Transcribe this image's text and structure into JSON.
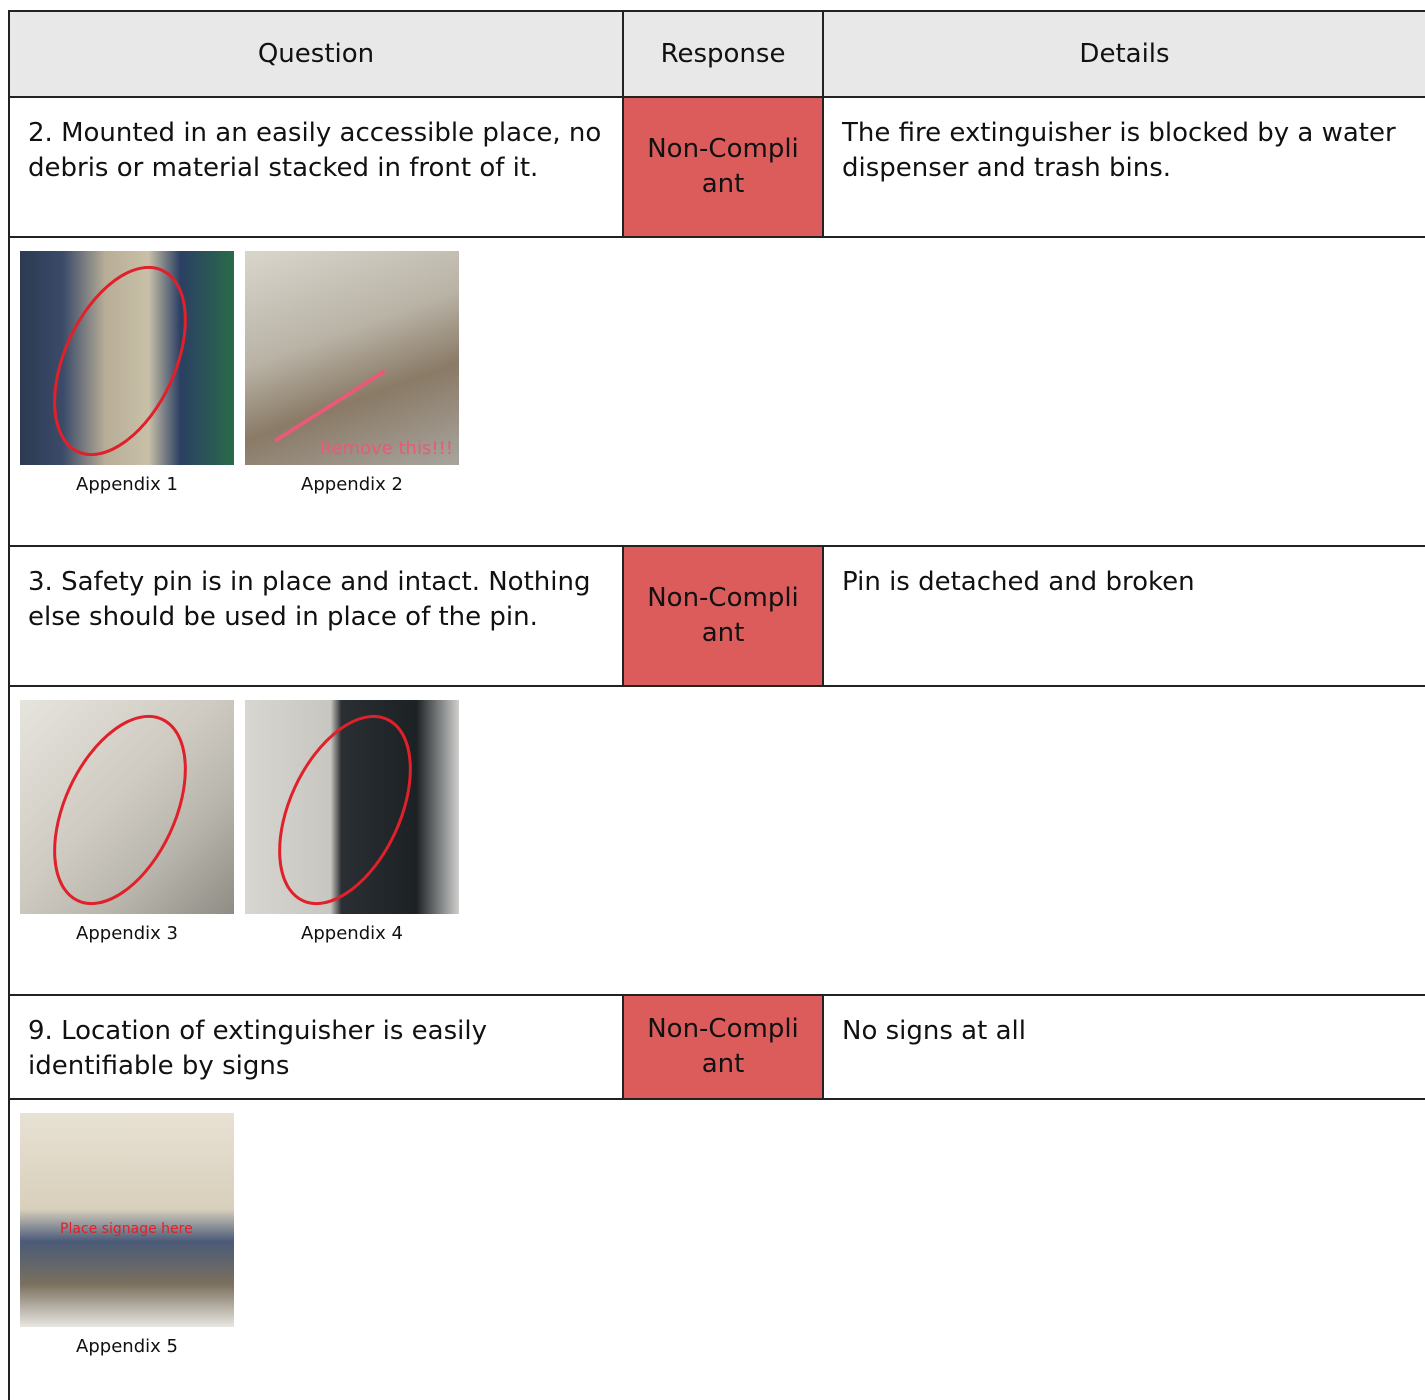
{
  "table": {
    "headers": [
      "Question",
      "Response",
      "Details"
    ],
    "items": [
      {
        "question": "2. Mounted in an easily accessible place, no debris or material stacked in front of it.",
        "response": "Non-Compliant",
        "details": "The fire extinguisher is blocked by a water dispenser and trash bins.",
        "images": [
          {
            "caption": "Appendix 1"
          },
          {
            "caption": "Appendix 2",
            "annotation": "Remove this!!!"
          }
        ]
      },
      {
        "question": "3. Safety pin is in place and intact. Nothing else should be used in place of the pin.",
        "response": "Non-Compliant",
        "details": "Pin is detached and broken",
        "images": [
          {
            "caption": "Appendix 3"
          },
          {
            "caption": "Appendix 4"
          }
        ]
      },
      {
        "question": "9. Location of extinguisher is easily identifiable by signs",
        "response": "Non-Compliant",
        "details": "No signs at all",
        "images": [
          {
            "caption": "Appendix 5",
            "annotation": "Place signage here"
          }
        ]
      }
    ]
  }
}
